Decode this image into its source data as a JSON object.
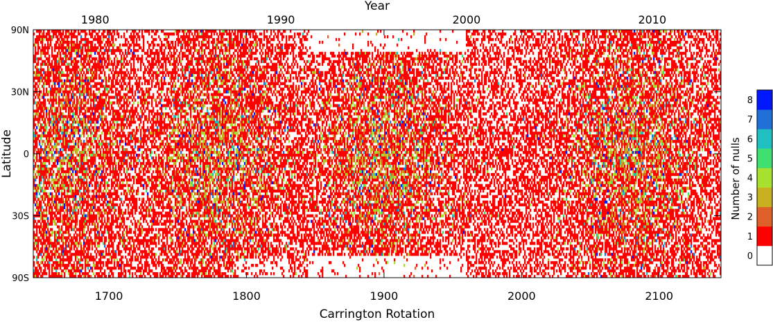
{
  "chart_data": {
    "type": "heatmap",
    "title": "",
    "xlabel": "Carrington Rotation",
    "ylabel": "Latitude",
    "top_axis_label": "Year",
    "x_ticks": [
      1700,
      1800,
      1900,
      2000,
      2100
    ],
    "x_tick_labels": [
      "1700",
      "1800",
      "1900",
      "2000",
      "2100"
    ],
    "top_ticks": [
      {
        "label": "1980",
        "rotation": 1690
      },
      {
        "label": "1990",
        "rotation": 1825
      },
      {
        "label": "2000",
        "rotation": 1960
      },
      {
        "label": "2010",
        "rotation": 2095
      }
    ],
    "y_ticks": [
      90,
      30,
      0,
      -30,
      -90
    ],
    "y_tick_labels": [
      "90N",
      "30N",
      "0",
      "30S",
      "90S"
    ],
    "y_scale": "sine-latitude",
    "xlim": [
      1645,
      2145
    ],
    "ylim": [
      -90,
      90
    ],
    "colorbar": {
      "label": "Number of nulls",
      "ticks": [
        "0",
        "1",
        "2",
        "3",
        "4",
        "5",
        "6",
        "7",
        "8"
      ],
      "colors": [
        "#ffffff",
        "#ff0000",
        "#e0602a",
        "#c8b020",
        "#a8e030",
        "#40e070",
        "#20c0c0",
        "#2070d8",
        "#0018ff"
      ]
    },
    "description_of_data": "Per-rotation, per-latitude count of magnetic null points (0-8); mostly 0-1 with higher counts (3-8) concentrated near low latitudes around rotations 1650-1680, 1760-1800, 1880-1920 and 2050-2100; polar regions sparse near rotations 1840-1960."
  }
}
